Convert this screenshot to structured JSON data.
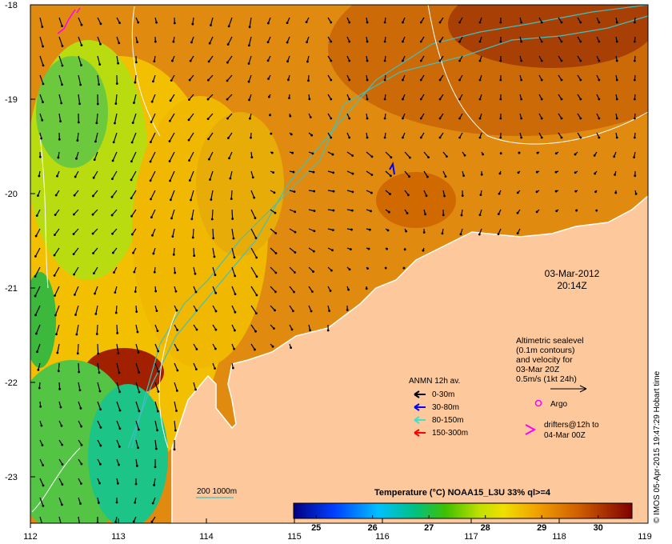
{
  "map": {
    "datetime": {
      "date": "03-Mar-2012",
      "time": "20:14Z"
    },
    "lat_ticks": [
      "-18",
      "-19",
      "-20",
      "-21",
      "-22",
      "-23"
    ],
    "lon_ticks": [
      "112",
      "113",
      "114",
      "115",
      "116",
      "117",
      "118",
      "119"
    ],
    "altimetry_note": [
      "Altimetric sealevel",
      "(0.1m contours)",
      "and velocity for",
      "03-Mar 20Z",
      "0.5m/s (1kt 24h)"
    ],
    "anmn": {
      "title": "ANMN 12h av.",
      "items": [
        {
          "label": "0-30m",
          "color": "#000000"
        },
        {
          "label": "30-80m",
          "color": "#0000ff"
        },
        {
          "label": "80-150m",
          "color": "#40e0d0"
        },
        {
          "label": "150-300m",
          "color": "#ff0000"
        }
      ]
    },
    "argo": {
      "label": "Argo",
      "color": "#ff00ff"
    },
    "drifters": {
      "line1": "drifters@12h to",
      "line2": "04-Mar 00Z",
      "color": "#ff00ff"
    },
    "isobath": {
      "label": "200  1000m",
      "color": "#40c0c0"
    },
    "colorbar": {
      "title": "Temperature (°C) NOAA15_L3U 33% ql>=4",
      "ticks": [
        "25",
        "26",
        "27",
        "28",
        "29",
        "30"
      ],
      "min": 24.6,
      "max": 30.6
    },
    "credit": "© IMOS 05-Apr-2015 19:47:29 Hobart time",
    "colors": {
      "land": "#fcc89c",
      "warm": "#d27400",
      "cool": "#f0d000"
    }
  }
}
